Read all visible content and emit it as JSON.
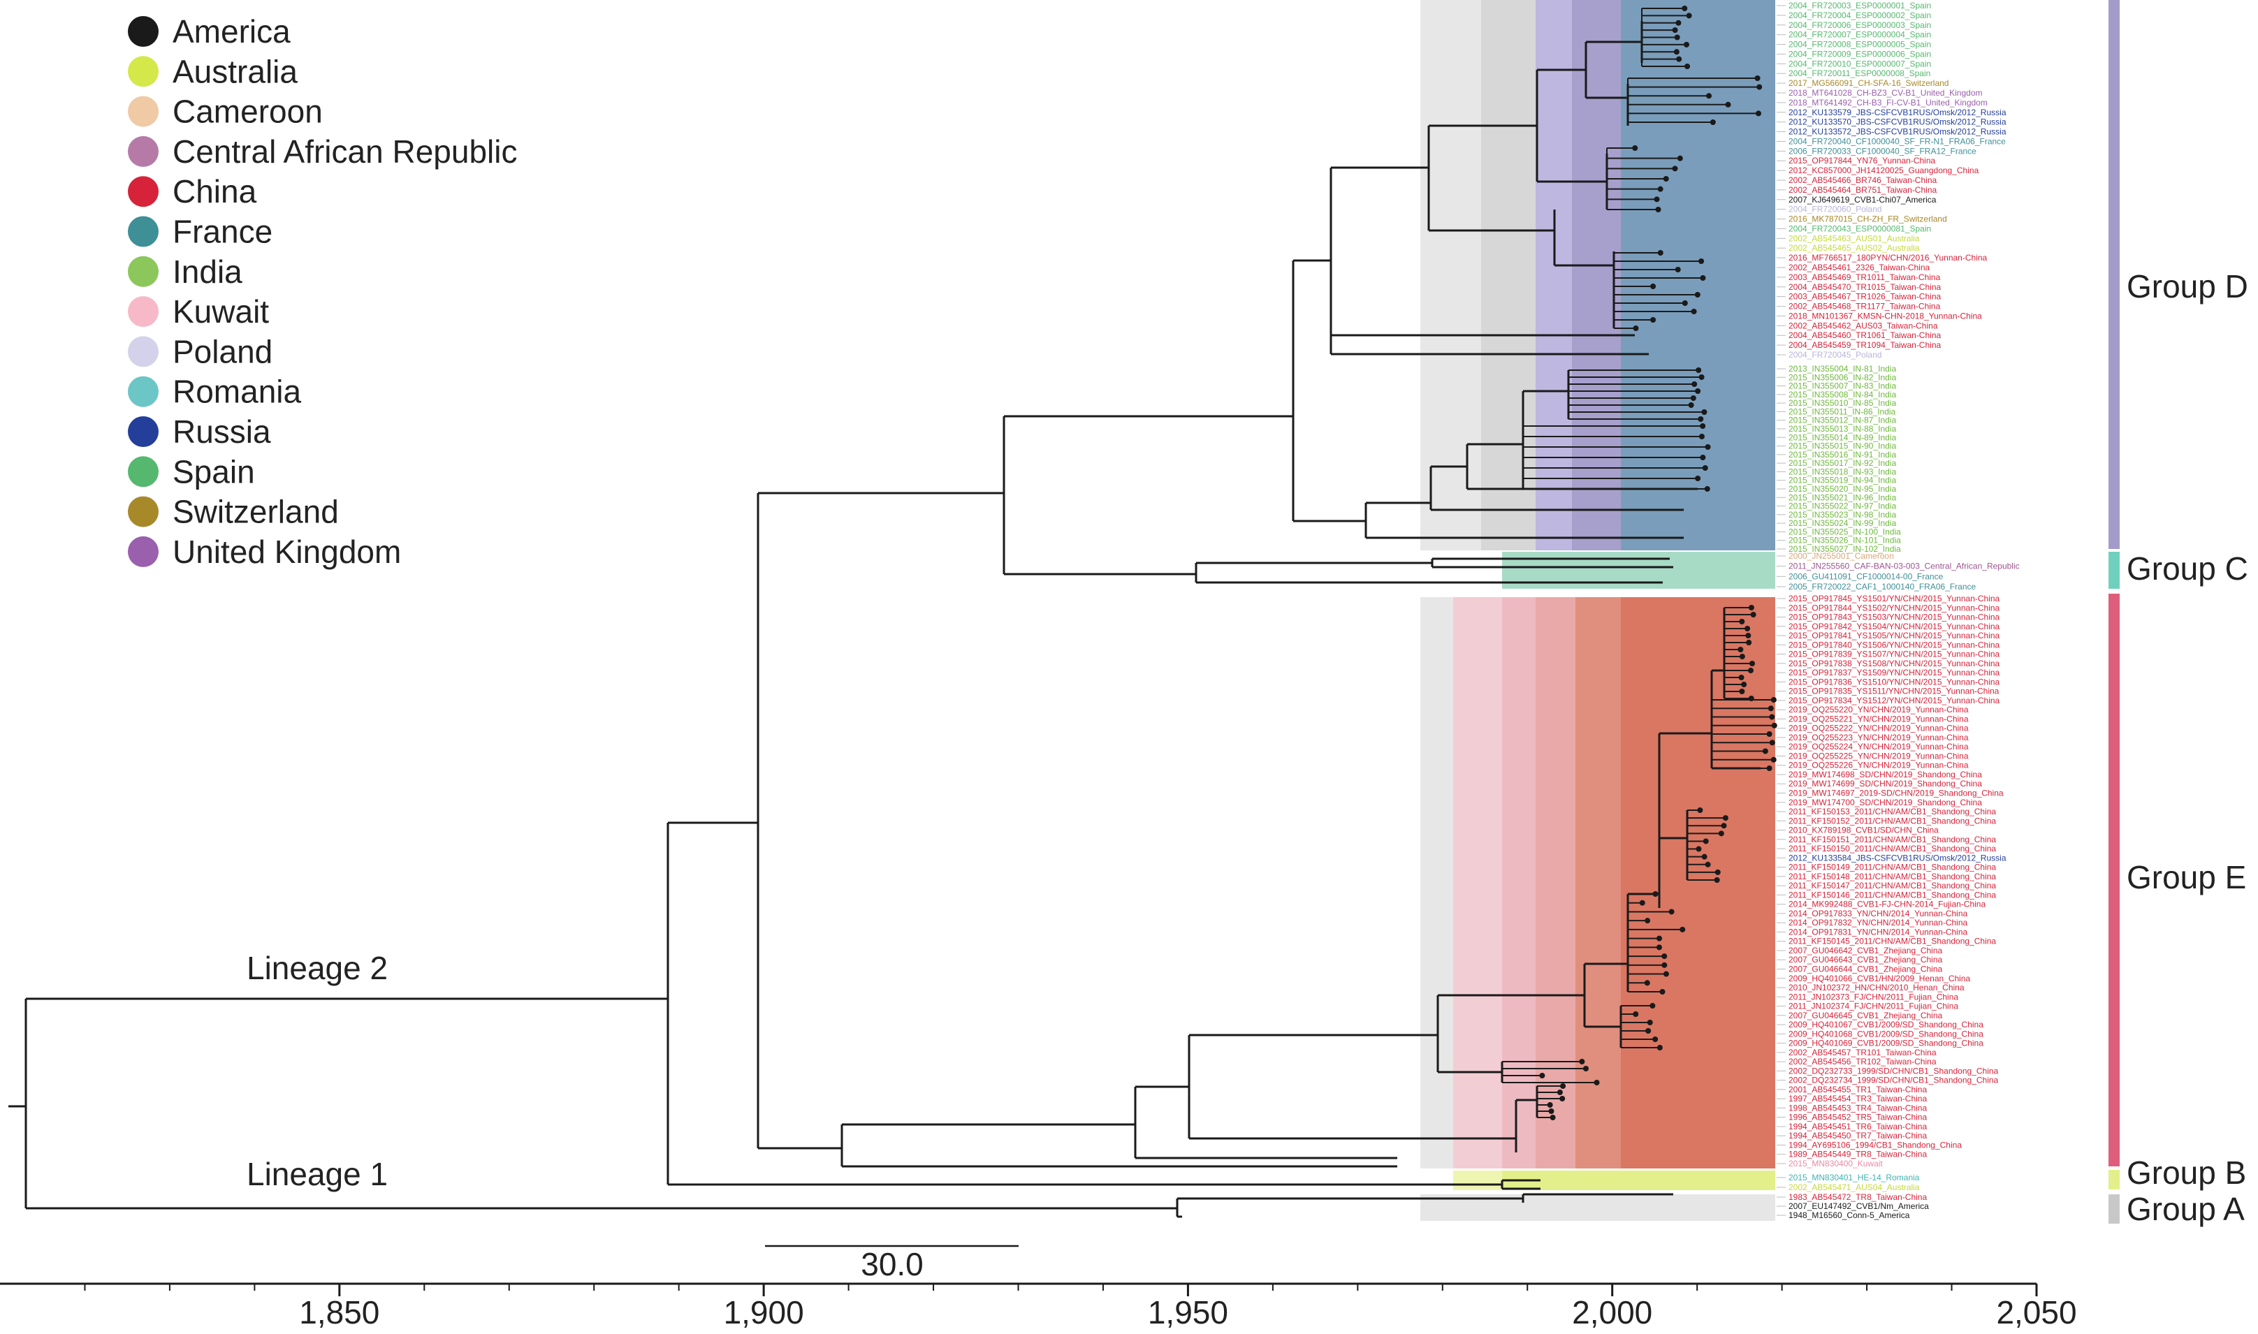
{
  "legend": [
    {
      "name": "America",
      "color": "#1a1a1a"
    },
    {
      "name": "Australia",
      "color": "#d4e84a"
    },
    {
      "name": "Cameroon",
      "color": "#f0c9a5"
    },
    {
      "name": "Central African Republic",
      "color": "#b67aa7"
    },
    {
      "name": "China",
      "color": "#d6233a"
    },
    {
      "name": "France",
      "color": "#3f8f97"
    },
    {
      "name": "India",
      "color": "#8bc75a"
    },
    {
      "name": "Kuwait",
      "color": "#f7b9c8"
    },
    {
      "name": "Poland",
      "color": "#d4d2ea"
    },
    {
      "name": "Romania",
      "color": "#6cc6c6"
    },
    {
      "name": "Russia",
      "color": "#243f9a"
    },
    {
      "name": "Spain",
      "color": "#55b86e"
    },
    {
      "name": "Switzerland",
      "color": "#a8892a"
    },
    {
      "name": "United Kingdom",
      "color": "#9a5fad"
    }
  ],
  "lineages": {
    "lineage2": "Lineage 2",
    "lineage1": "Lineage 1"
  },
  "groups": [
    {
      "label": "Group D",
      "color": "#a39ccb"
    },
    {
      "label": "Group C",
      "color": "#6fd1bd"
    },
    {
      "label": "Group E",
      "color": "#dd5f7c"
    },
    {
      "label": "Group B",
      "color": "#e3ef8a"
    },
    {
      "label": "Group A",
      "color": "#c8c8c8"
    }
  ],
  "scale_bar": {
    "label": "30.0"
  },
  "axis": {
    "ticks": [
      "1,850",
      "1,900",
      "1,950",
      "2,000",
      "2,050"
    ],
    "domain": [
      1810,
      2050
    ]
  },
  "tip_labels": {
    "group_d_top": [
      "2004_FR720003_ESP0000001_Spain",
      "2004_FR720004_ESP0000002_Spain",
      "2004_FR720006_ESP0000003_Spain",
      "2004_FR720007_ESP0000004_Spain",
      "2004_FR720008_ESP0000005_Spain",
      "2004_FR720009_ESP0000006_Spain",
      "2004_FR720010_ESP0000007_Spain",
      "2004_FR720011_ESP0000008_Spain",
      "2017_MG566091_CH-SFA-16_Switzerland",
      "2018_MT641028_CH-BZ3_CV-B1_United_Kingdom",
      "2018_MT641492_CH-B3_FI-CV-B1_United_Kingdom",
      "2012_KU133579_JBS-CSFCVB1RUS/Omsk/2012_Russia",
      "2012_KU133570_JBS-CSFCVB1RUS/Omsk/2012_Russia",
      "2012_KU133572_JBS-CSFCVB1RUS/Omsk/2012_Russia",
      "2004_FR720040_CF1000040_SF_FR-N1_FRA06_France",
      "2006_FR720033_CF1000040_SF_FRA12_France",
      "2015_OP917844_YN76_Yunnan-China",
      "2012_KC857000_JH14120025_Guangdong_China",
      "2002_AB545466_BR746_Taiwan-China",
      "2002_AB545464_BR751_Taiwan-China",
      "2007_KJ649619_CVB1-Chi07_America",
      "2004_FR720060_Poland",
      "2016_MK787015_CH-ZH_FR_Switzerland",
      "2004_FR720043_ESP0000081_Spain",
      "2002_AB545463_AUS01_Australia",
      "2002_AB545465_AUS02_Australia",
      "2016_MF766517_180PYN/CHN/2016_Yunnan-China",
      "2002_AB545461_2326_Taiwan-China",
      "2003_AB545469_TR1011_Taiwan-China",
      "2004_AB545470_TR1015_Taiwan-China",
      "2003_AB545467_TR1026_Taiwan-China",
      "2002_AB545468_TR1177_Taiwan-China",
      "2018_MN101367_KMSN-CHN-2018_Yunnan-China",
      "2002_AB545462_AUS03_Taiwan-China",
      "2004_AB545460_TR1061_Taiwan-China",
      "2004_AB545459_TR1094_Taiwan-China",
      "2004_FR720045_Poland"
    ],
    "india": [
      "2013_IN355004_IN-81_India",
      "2015_IN355006_IN-82_India",
      "2015_IN355007_IN-83_India",
      "2015_IN355008_IN-84_India",
      "2015_IN355010_IN-85_India",
      "2015_IN355011_IN-86_India",
      "2015_IN355012_IN-87_India",
      "2015_IN355013_IN-88_India",
      "2015_IN355014_IN-89_India",
      "2015_IN355015_IN-90_India",
      "2015_IN355016_IN-91_India",
      "2015_IN355017_IN-92_India",
      "2015_IN355018_IN-93_India",
      "2015_IN355019_IN-94_India",
      "2015_IN355020_IN-95_India",
      "2015_IN355021_IN-96_India",
      "2015_IN355022_IN-97_India",
      "2015_IN355023_IN-98_India",
      "2015_IN355024_IN-99_India",
      "2015_IN355025_IN-100_India",
      "2015_IN355026_IN-101_India",
      "2015_IN355027_IN-102_India"
    ],
    "group_c": [
      "2000_JN255001_Cameroon",
      "2011_JN255560_CAF-BAN-03-003_Central_African_Republic",
      "2006_GU411091_CF1000014-00_France",
      "2005_FR720022_CAF1_1000140_FRA06_France"
    ],
    "group_e": [
      "2015_OP917845_YS1501/YN/CHN/2015_Yunnan-China",
      "2015_OP917844_YS1502/YN/CHN/2015_Yunnan-China",
      "2015_OP917843_YS1503/YN/CHN/2015_Yunnan-China",
      "2015_OP917842_YS1504/YN/CHN/2015_Yunnan-China",
      "2015_OP917841_YS1505/YN/CHN/2015_Yunnan-China",
      "2015_OP917840_YS1506/YN/CHN/2015_Yunnan-China",
      "2015_OP917839_YS1507/YN/CHN/2015_Yunnan-China",
      "2015_OP917838_YS1508/YN/CHN/2015_Yunnan-China",
      "2015_OP917837_YS1509/YN/CHN/2015_Yunnan-China",
      "2015_OP917836_YS1510/YN/CHN/2015_Yunnan-China",
      "2015_OP917835_YS1511/YN/CHN/2015_Yunnan-China",
      "2015_OP917834_YS1512/YN/CHN/2015_Yunnan-China",
      "2019_OQ255220_YN/CHN/2019_Yunnan-China",
      "2019_OQ255221_YN/CHN/2019_Yunnan-China",
      "2019_OQ255222_YN/CHN/2019_Yunnan-China",
      "2019_OQ255223_YN/CHN/2019_Yunnan-China",
      "2019_OQ255224_YN/CHN/2019_Yunnan-China",
      "2019_OQ255225_YN/CHN/2019_Yunnan-China",
      "2019_OQ255226_YN/CHN/2019_Yunnan-China",
      "2019_MW174698_SD/CHN/2019_Shandong_China",
      "2019_MW174699_SD/CHN/2019_Shandong_China",
      "2019_MW174697_2019-SD/CHN/2019_Shandong_China",
      "2019_MW174700_SD/CHN/2019_Shandong_China",
      "2011_KF150153_2011/CHN/AM/CB1_Shandong_China",
      "2011_KF150152_2011/CHN/AM/CB1_Shandong_China",
      "2010_KX789198_CVB1/SD/CHN_China",
      "2011_KF150151_2011/CHN/AM/CB1_Shandong_China",
      "2011_KF150150_2011/CHN/AM/CB1_Shandong_China",
      "2012_KU133584_JBS-CSFCVB1RUS/Omsk/2012_Russia",
      "2011_KF150149_2011/CHN/AM/CB1_Shandong_China",
      "2011_KF150148_2011/CHN/AM/CB1_Shandong_China",
      "2011_KF150147_2011/CHN/AM/CB1_Shandong_China",
      "2011_KF150146_2011/CHN/AM/CB1_Shandong_China",
      "2014_MK992488_CVB1-FJ-CHN-2014_Fujian-China",
      "2014_OP917833_YN/CHN/2014_Yunnan-China",
      "2014_OP917832_YN/CHN/2014_Yunnan-China",
      "2014_OP917831_YN/CHN/2014_Yunnan-China",
      "2011_KF150145_2011/CHN/AM/CB1_Shandong_China",
      "2007_GU046642_CVB1_Zhejiang_China",
      "2007_GU046643_CVB1_Zhejiang_China",
      "2007_GU046644_CVB1_Zhejiang_China",
      "2009_HQ401066_CVB1/HN/2009_Henan_China",
      "2010_JN102372_HN/CHN/2010_Henan_China",
      "2011_JN102373_FJ/CHN/2011_Fujian_China",
      "2011_JN102374_FJ/CHN/2011_Fujian_China",
      "2007_GU046645_CVB1_Zhejiang_China",
      "2009_HQ401067_CVB1/2009/SD_Shandong_China",
      "2009_HQ401068_CVB1/2009/SD_Shandong_China",
      "2009_HQ401069_CVB1/2009/SD_Shandong_China",
      "2002_AB545457_TR101_Taiwan-China",
      "2002_AB545456_TR102_Taiwan-China",
      "2002_DQ232733_1999/SD/CHN/CB1_Shandong_China",
      "2002_DQ232734_1999/SD/CHN/CB1_Shandong_China",
      "2001_AB545455_TR1_Taiwan-China",
      "1997_AB545454_TR3_Taiwan-China",
      "1998_AB545453_TR4_Taiwan-China",
      "1996_AB545452_TR5_Taiwan-China",
      "1994_AB545451_TR6_Taiwan-China",
      "1994_AB545450_TR7_Taiwan-China",
      "1994_AY695106_1994/CB1_Shandong_China",
      "1989_AB545449_TR8_Taiwan-China",
      "2015_MN830400_Kuwait"
    ],
    "group_b": [
      "2015_MN830401_HE-14_Romania",
      "2002_AB545471_AUS04_Australia"
    ],
    "group_a": [
      "1983_AB545472_TR8_Taiwan-China",
      "2007_EU147492_CVB1/Nm_America",
      "1948_M16560_Conn-5_America"
    ]
  }
}
